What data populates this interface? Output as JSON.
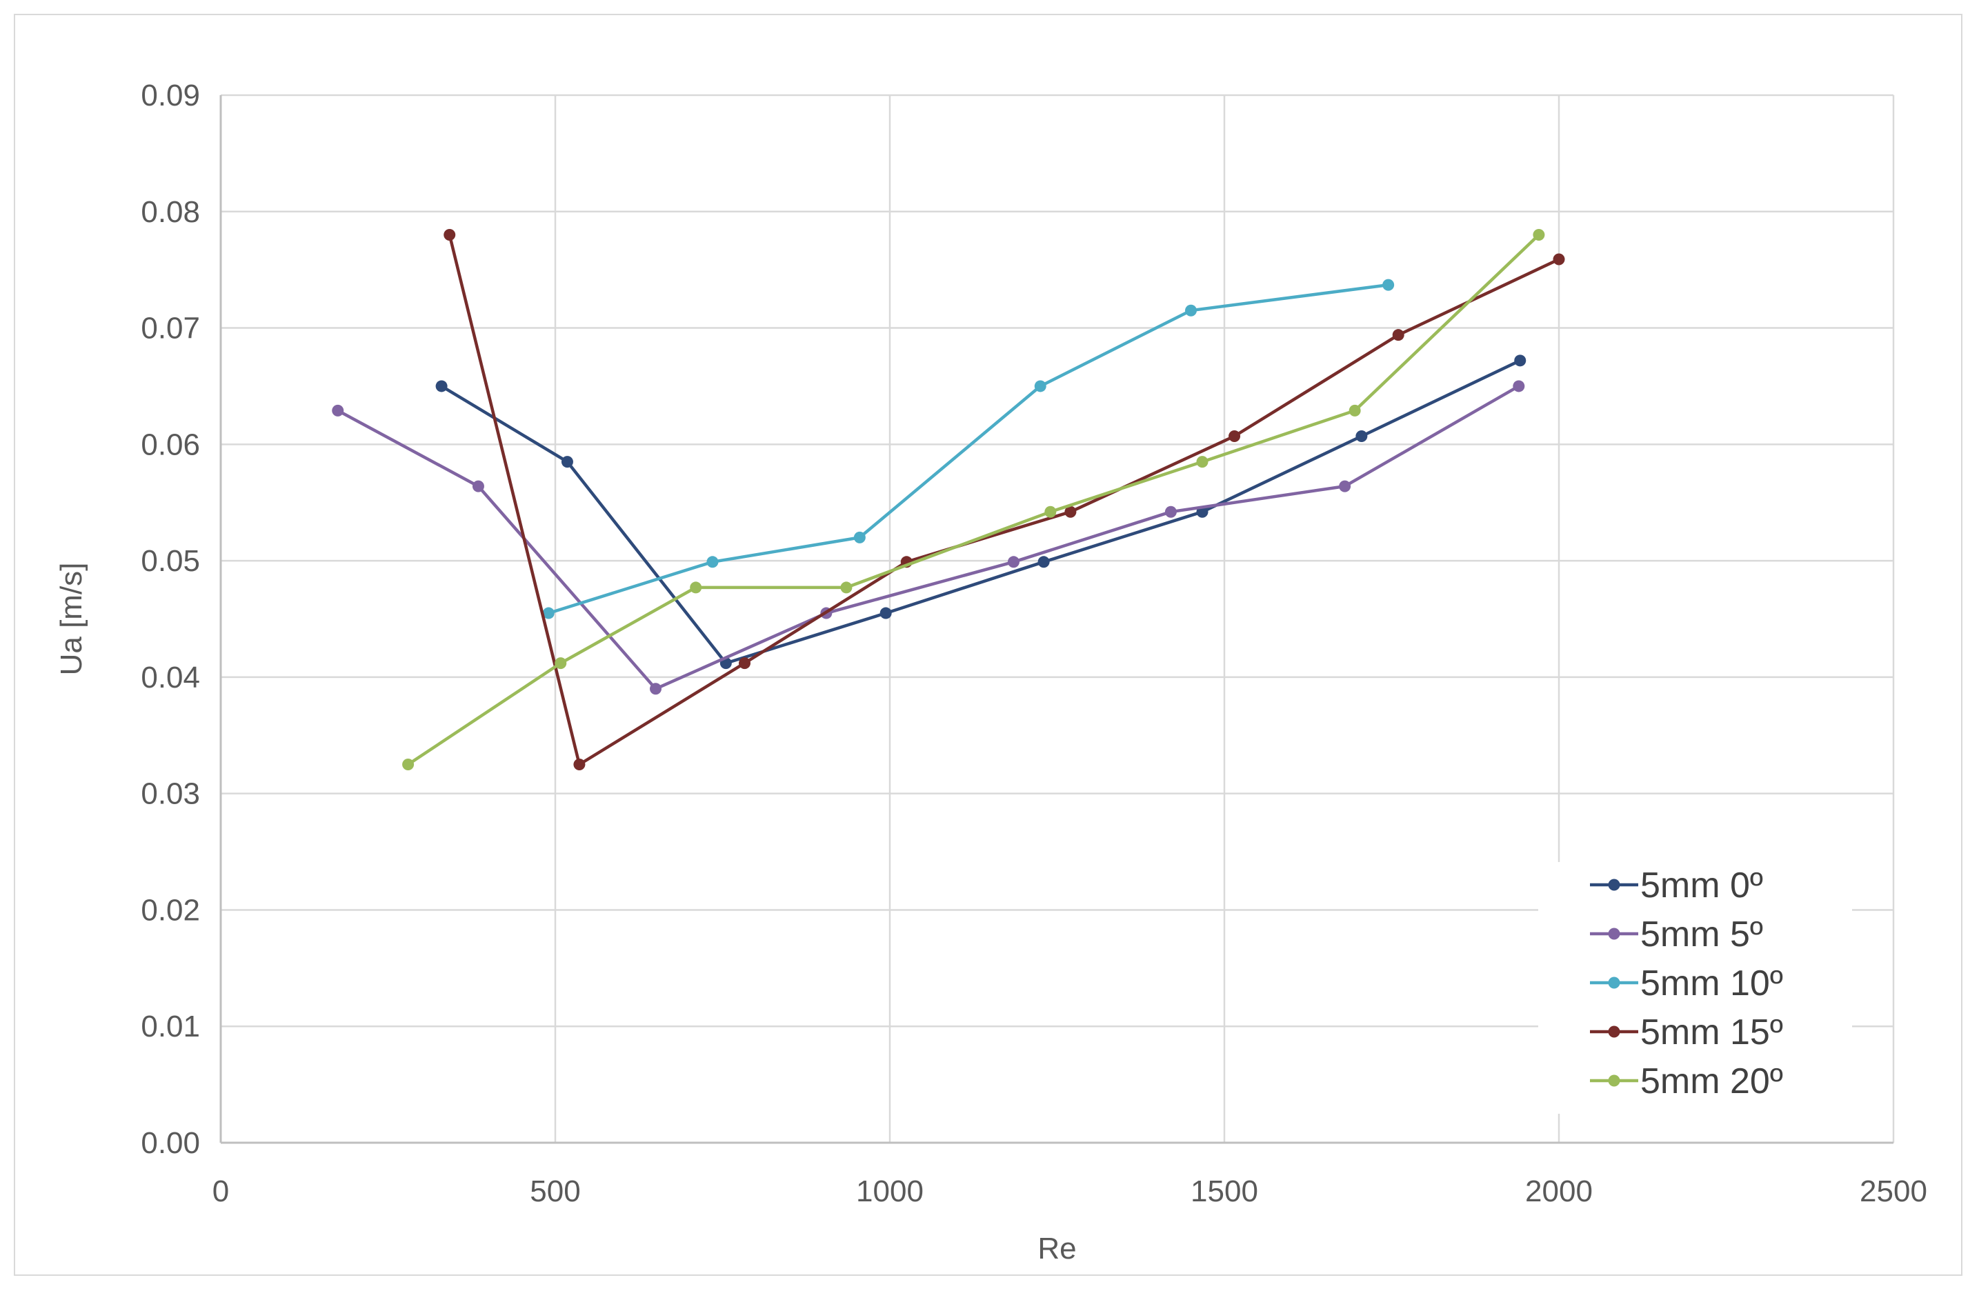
{
  "chart_data": {
    "type": "line",
    "title": "",
    "xlabel": "Re",
    "ylabel": "Ua [m/s]",
    "xlim": [
      0,
      2500
    ],
    "ylim": [
      0,
      0.09
    ],
    "x_ticks": [
      "0",
      "500",
      "1000",
      "1500",
      "2000",
      "2500"
    ],
    "y_ticks": [
      "0.00",
      "0.01",
      "0.02",
      "0.03",
      "0.04",
      "0.05",
      "0.06",
      "0.07",
      "0.08",
      "0.09"
    ],
    "grid": true,
    "legend_position": "bottom-right",
    "series": [
      {
        "name": "5mm 0º",
        "color": "#2e4a7a",
        "points": [
          [
            330,
            0.065
          ],
          [
            518,
            0.0585
          ],
          [
            755,
            0.0412
          ],
          [
            994,
            0.0455
          ],
          [
            1230,
            0.0499
          ],
          [
            1467,
            0.0542
          ],
          [
            1705,
            0.0607
          ],
          [
            1942,
            0.0672
          ]
        ]
      },
      {
        "name": "5mm 5º",
        "color": "#8064a2",
        "points": [
          [
            175,
            0.0629
          ],
          [
            385,
            0.0564
          ],
          [
            650,
            0.039
          ],
          [
            905,
            0.0455
          ],
          [
            1185,
            0.0499
          ],
          [
            1420,
            0.0542
          ],
          [
            1680,
            0.0564
          ],
          [
            1940,
            0.065
          ]
        ]
      },
      {
        "name": "5mm 10º",
        "color": "#4bacc6",
        "points": [
          [
            490,
            0.0455
          ],
          [
            735,
            0.0499
          ],
          [
            955,
            0.052
          ],
          [
            1225,
            0.065
          ],
          [
            1450,
            0.0715
          ],
          [
            1745,
            0.0737
          ]
        ]
      },
      {
        "name": "5mm 15º",
        "color": "#772c2a",
        "points": [
          [
            342,
            0.078
          ],
          [
            536,
            0.0325
          ],
          [
            783,
            0.0412
          ],
          [
            1025,
            0.0499
          ],
          [
            1270,
            0.0542
          ],
          [
            1515,
            0.0607
          ],
          [
            1760,
            0.0694
          ],
          [
            2000,
            0.0759
          ]
        ]
      },
      {
        "name": "5mm 20º",
        "color": "#9bbb59",
        "points": [
          [
            280,
            0.0325
          ],
          [
            508,
            0.0412
          ],
          [
            710,
            0.0477
          ],
          [
            935,
            0.0477
          ],
          [
            1240,
            0.0542
          ],
          [
            1467,
            0.0585
          ],
          [
            1695,
            0.0629
          ],
          [
            1970,
            0.078
          ]
        ]
      }
    ]
  }
}
